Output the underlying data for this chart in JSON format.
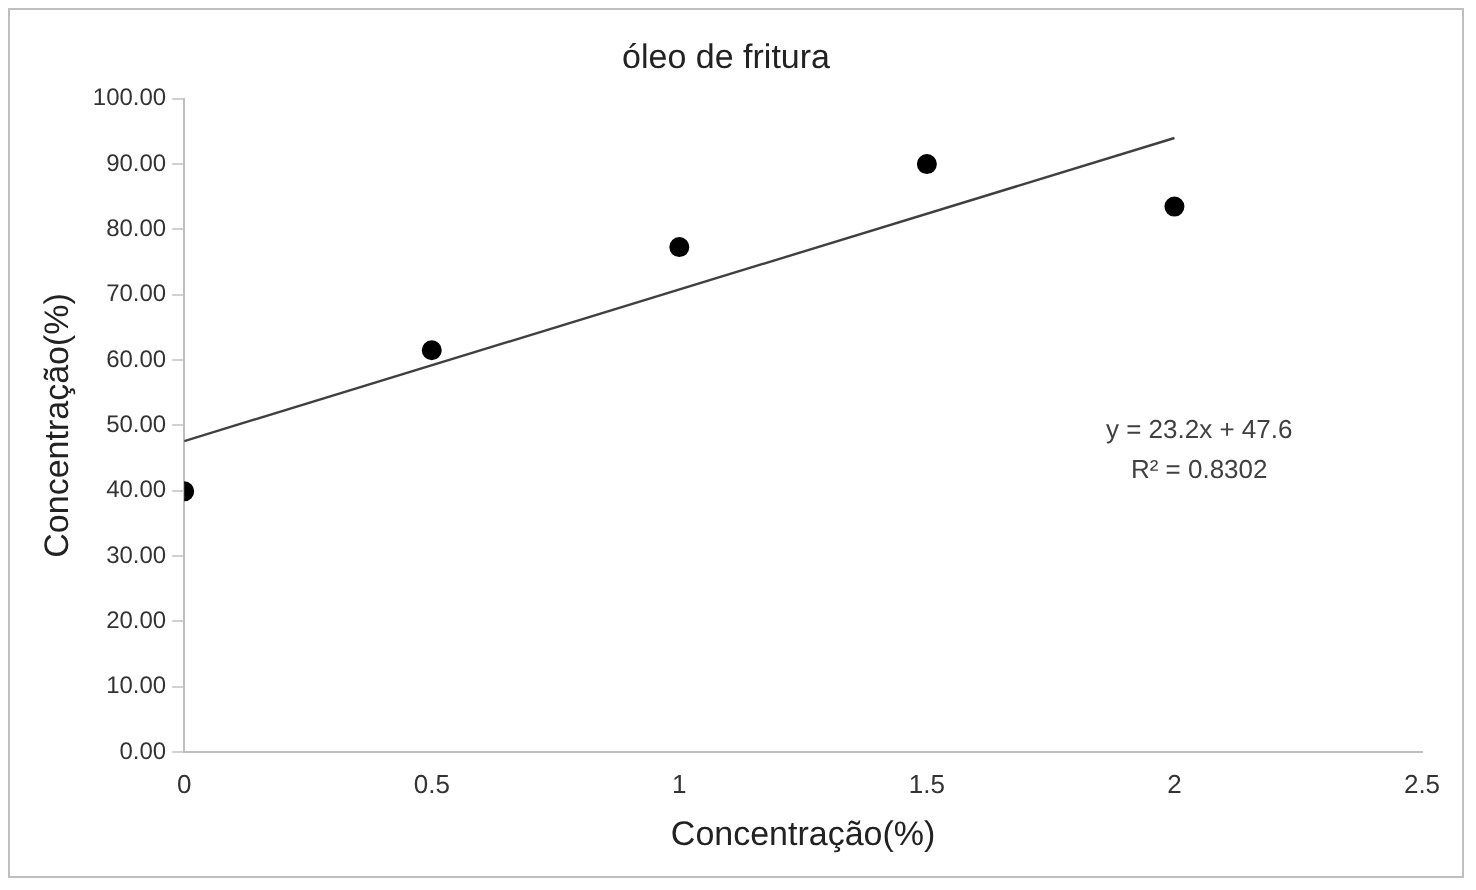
{
  "chart_data": {
    "type": "scatter",
    "title": "óleo de fritura",
    "xlabel": "Concentração(%)",
    "ylabel": "Concentração(%)",
    "x": [
      0,
      0.5,
      1,
      1.5,
      2
    ],
    "series": [
      {
        "color": "#000000",
        "values": [
          39.9,
          61.5,
          77.3,
          90.0,
          83.5
        ],
        "marker": "circle"
      },
      {
        "type": "line",
        "color": "#404040",
        "x": [
          0,
          2
        ],
        "values": [
          47.6,
          94.0
        ],
        "marker": "none",
        "line_style": "solid"
      }
    ],
    "xlim": [
      0,
      2.5
    ],
    "xticks": [
      0,
      0.5,
      1,
      1.5,
      2,
      2.5
    ],
    "ylim": [
      0,
      100
    ],
    "yticks": [
      {
        "value": 0,
        "label": "0.00"
      },
      {
        "value": 10,
        "label": "10.00"
      },
      {
        "value": 20,
        "label": "20.00"
      },
      {
        "value": 30,
        "label": "30.00"
      },
      {
        "value": 40,
        "label": "40.00"
      },
      {
        "value": 50,
        "label": "50.00"
      },
      {
        "value": 60,
        "label": "60.00"
      },
      {
        "value": 70,
        "label": "70.00"
      },
      {
        "value": 80,
        "label": "80.00"
      },
      {
        "value": 90,
        "label": "90.00"
      },
      {
        "value": 100,
        "label": "100.00"
      }
    ],
    "annotations": [
      "y = 23.2x + 47.6",
      "R² = 0.8302"
    ],
    "grid": false,
    "legend": false
  }
}
